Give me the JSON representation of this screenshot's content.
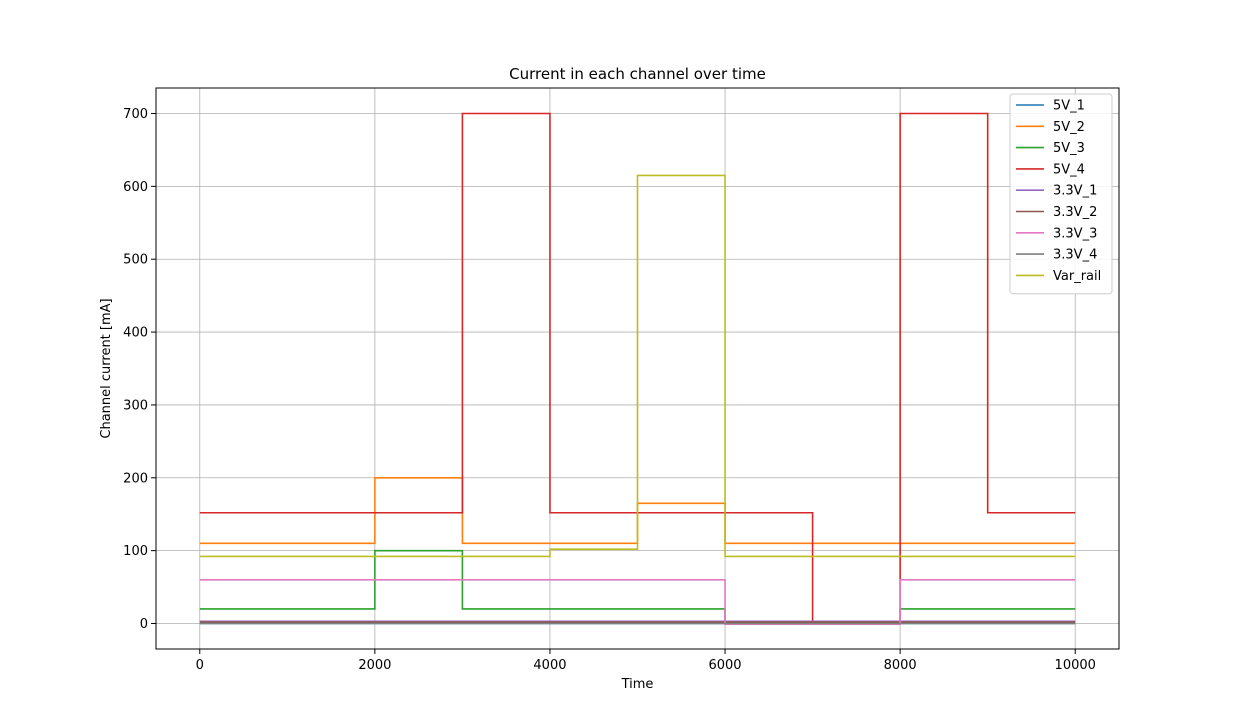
{
  "chart_data": {
    "type": "line",
    "title": "Current in each channel over time",
    "xlabel": "Time",
    "ylabel": "Channel current [mA]",
    "xlim": [
      -500,
      10500
    ],
    "ylim": [
      -35,
      735
    ],
    "xticks": [
      0,
      2000,
      4000,
      6000,
      8000,
      10000
    ],
    "yticks": [
      0,
      100,
      200,
      300,
      400,
      500,
      600,
      700
    ],
    "grid": true,
    "legend_position": "top-right",
    "series": [
      {
        "name": "5V_1",
        "color": "#1f77b4",
        "points": [
          [
            0,
            0
          ],
          [
            10000,
            0
          ]
        ]
      },
      {
        "name": "5V_2",
        "color": "#ff7f0e",
        "points": [
          [
            0,
            110
          ],
          [
            2000,
            110
          ],
          [
            2000,
            200
          ],
          [
            3000,
            200
          ],
          [
            3000,
            110
          ],
          [
            5000,
            110
          ],
          [
            5000,
            165
          ],
          [
            6000,
            165
          ],
          [
            6000,
            110
          ],
          [
            10000,
            110
          ]
        ]
      },
      {
        "name": "5V_3",
        "color": "#2ca02c",
        "points": [
          [
            0,
            20
          ],
          [
            2000,
            20
          ],
          [
            2000,
            100
          ],
          [
            3000,
            100
          ],
          [
            3000,
            20
          ],
          [
            6000,
            20
          ],
          [
            6000,
            0
          ],
          [
            8000,
            0
          ],
          [
            8000,
            20
          ],
          [
            10000,
            20
          ]
        ]
      },
      {
        "name": "5V_4",
        "color": "#d62728",
        "points": [
          [
            0,
            152
          ],
          [
            3000,
            152
          ],
          [
            3000,
            700
          ],
          [
            4000,
            700
          ],
          [
            4000,
            152
          ],
          [
            7000,
            152
          ],
          [
            7000,
            3
          ],
          [
            8000,
            3
          ],
          [
            8000,
            700
          ],
          [
            9000,
            700
          ],
          [
            9000,
            152
          ],
          [
            10000,
            152
          ]
        ]
      },
      {
        "name": "3.3V_1",
        "color": "#9467bd",
        "points": [
          [
            0,
            3
          ],
          [
            10000,
            3
          ]
        ]
      },
      {
        "name": "3.3V_2",
        "color": "#8c564b",
        "points": [
          [
            0,
            2
          ],
          [
            10000,
            2
          ]
        ]
      },
      {
        "name": "3.3V_3",
        "color": "#e377c2",
        "points": [
          [
            0,
            60
          ],
          [
            6000,
            60
          ],
          [
            6000,
            -1
          ],
          [
            8000,
            -1
          ],
          [
            8000,
            60
          ],
          [
            10000,
            60
          ]
        ]
      },
      {
        "name": "3.3V_4",
        "color": "#7f7f7f",
        "points": [
          [
            0,
            0
          ],
          [
            10000,
            0
          ]
        ]
      },
      {
        "name": "Var_rail",
        "color": "#bcbd22",
        "points": [
          [
            0,
            92
          ],
          [
            4000,
            92
          ],
          [
            4000,
            102
          ],
          [
            5000,
            102
          ],
          [
            5000,
            615
          ],
          [
            6000,
            615
          ],
          [
            6000,
            92
          ],
          [
            10000,
            92
          ]
        ]
      }
    ]
  }
}
